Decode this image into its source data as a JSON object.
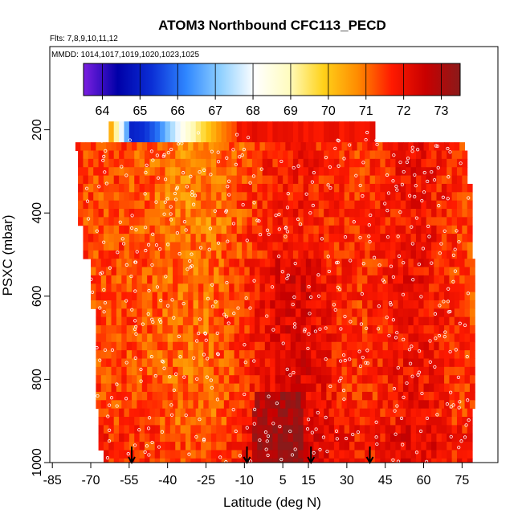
{
  "chart_data": {
    "type": "heatmap",
    "title": "ATOM3 Northbound CFC113_PECD",
    "subtitle_flights": "Flts: 7,8,9,10,11,12",
    "subtitle_dates": "MMDD: 1014,1017,1019,1020,1023,1025",
    "xlabel": "Latitude (deg N)",
    "ylabel": "PSXC (mbar)",
    "xlim": [
      -86,
      89
    ],
    "ylim": [
      1000,
      0
    ],
    "x_ticks": [
      -85,
      -70,
      -55,
      -40,
      -25,
      -10,
      5,
      15,
      30,
      45,
      60,
      75
    ],
    "y_ticks": [
      200,
      400,
      600,
      800,
      1000
    ],
    "colorbar": {
      "range": [
        63.5,
        73.5
      ],
      "ticks": [
        64,
        65,
        66,
        67,
        68,
        69,
        70,
        71,
        72,
        73
      ],
      "stops": [
        "#7b1fe0",
        "#0000a8",
        "#0b2fd6",
        "#2f87ff",
        "#8fd0ff",
        "#ffffff",
        "#fffcc0",
        "#ffd21a",
        "#ff8c00",
        "#ff1a00",
        "#c80000",
        "#8b1a1a"
      ]
    },
    "flight_arrows_lat": [
      -54,
      -9,
      16,
      39
    ],
    "data_extent": {
      "lat": [
        -73,
        79
      ],
      "pressure_top": 180,
      "pressure_bottom": 1010
    },
    "field_description_values": {
      "upper_row_lat": [
        -56,
        -50,
        -45,
        -40,
        -35,
        -30,
        -25,
        -20,
        -15
      ],
      "upper_row_values": [
        65.0,
        65.3,
        66.0,
        67.2,
        68.3,
        69.2,
        70.0,
        70.8,
        71.3
      ],
      "typical_mid_troposphere": 71.5,
      "boundary_layer_max": 73.0
    }
  }
}
